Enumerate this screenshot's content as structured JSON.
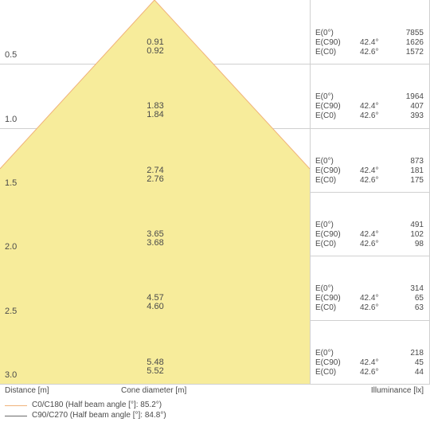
{
  "rows": [
    {
      "distance": "0.5",
      "diameters": [
        "0.91",
        "0.92"
      ],
      "illuminance": [
        {
          "label": "E(0°)",
          "angle": "",
          "value": "7855"
        },
        {
          "label": "E(C90)",
          "angle": "42.4°",
          "value": "1626"
        },
        {
          "label": "E(C0)",
          "angle": "42.6°",
          "value": "1572"
        }
      ]
    },
    {
      "distance": "1.0",
      "diameters": [
        "1.83",
        "1.84"
      ],
      "illuminance": [
        {
          "label": "E(0°)",
          "angle": "",
          "value": "1964"
        },
        {
          "label": "E(C90)",
          "angle": "42.4°",
          "value": "407"
        },
        {
          "label": "E(C0)",
          "angle": "42.6°",
          "value": "393"
        }
      ]
    },
    {
      "distance": "1.5",
      "diameters": [
        "2.74",
        "2.76"
      ],
      "illuminance": [
        {
          "label": "E(0°)",
          "angle": "",
          "value": "873"
        },
        {
          "label": "E(C90)",
          "angle": "42.4°",
          "value": "181"
        },
        {
          "label": "E(C0)",
          "angle": "42.6°",
          "value": "175"
        }
      ]
    },
    {
      "distance": "2.0",
      "diameters": [
        "3.65",
        "3.68"
      ],
      "illuminance": [
        {
          "label": "E(0°)",
          "angle": "",
          "value": "491"
        },
        {
          "label": "E(C90)",
          "angle": "42.4°",
          "value": "102"
        },
        {
          "label": "E(C0)",
          "angle": "42.6°",
          "value": "98"
        }
      ]
    },
    {
      "distance": "2.5",
      "diameters": [
        "4.57",
        "4.60"
      ],
      "illuminance": [
        {
          "label": "E(0°)",
          "angle": "",
          "value": "314"
        },
        {
          "label": "E(C90)",
          "angle": "42.4°",
          "value": "65"
        },
        {
          "label": "E(C0)",
          "angle": "42.6°",
          "value": "63"
        }
      ]
    },
    {
      "distance": "3.0",
      "diameters": [
        "5.48",
        "5.52"
      ],
      "illuminance": [
        {
          "label": "E(0°)",
          "angle": "",
          "value": "218"
        },
        {
          "label": "E(C90)",
          "angle": "42.4°",
          "value": "45"
        },
        {
          "label": "E(C0)",
          "angle": "42.6°",
          "value": "44"
        }
      ]
    }
  ],
  "axis_labels": {
    "distance": "Distance [m]",
    "cone_diameter": "Cone diameter [m]",
    "illuminance": "Illuminance [lx]"
  },
  "legend": [
    {
      "text": "C0/C180 (Half beam angle [°]: 85.2°)",
      "color": "#f0b27a"
    },
    {
      "text": "C90/C270 (Half beam angle [°]: 84.8°)",
      "color": "#6b6b6b"
    }
  ],
  "colors": {
    "cone_fill": "#f7ec9b",
    "grid": "#d0d0d0",
    "text": "#4a4a4a"
  }
}
